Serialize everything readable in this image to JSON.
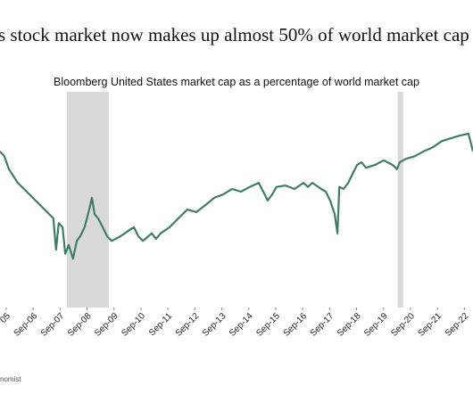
{
  "chart_data": {
    "type": "line",
    "title": "s stock market now makes up almost 50% of world market cap",
    "subtitle": "Bloomberg United States market cap as a percentage of world market cap",
    "source": "nomist",
    "x": [
      2005.44,
      2005.6,
      2005.77,
      2006.1,
      2006.43,
      2006.76,
      2007.09,
      2007.42,
      2007.52,
      2007.62,
      2007.76,
      2007.86,
      2007.99,
      2008.15,
      2008.29,
      2008.42,
      2008.58,
      2008.75,
      2008.85,
      2008.95,
      2009.08,
      2009.25,
      2009.41,
      2009.58,
      2009.74,
      2009.91,
      2010.07,
      2010.24,
      2010.41,
      2010.57,
      2010.74,
      2011.07,
      2011.23,
      2011.4,
      2011.73,
      2012.06,
      2012.39,
      2012.72,
      2013.05,
      2013.39,
      2013.72,
      2014.05,
      2014.38,
      2014.71,
      2015.04,
      2015.21,
      2015.37,
      2015.54,
      2015.7,
      2016.03,
      2016.37,
      2016.7,
      2016.86,
      2017.03,
      2017.36,
      2017.53,
      2017.69,
      2017.86,
      2017.96,
      2018.03,
      2018.19,
      2018.36,
      2018.52,
      2018.69,
      2018.85,
      2019.02,
      2019.35,
      2019.68,
      2020.01,
      2020.17,
      2020.27,
      2020.5,
      2020.83,
      2021.16,
      2021.5,
      2021.83,
      2022.16,
      2022.49,
      2022.82,
      2022.99
    ],
    "series": [
      {
        "color": "#3f7d64",
        "values": [
          47.2,
          46.5,
          44.6,
          42.6,
          41.3,
          40.0,
          38.7,
          37.4,
          32.8,
          36.7,
          36.1,
          32.2,
          33.5,
          31.5,
          34.1,
          34.8,
          36.1,
          38.7,
          40.4,
          38.0,
          37.4,
          36.1,
          34.8,
          34.1,
          34.4,
          34.8,
          35.2,
          35.7,
          36.1,
          34.8,
          34.1,
          35.2,
          34.4,
          35.2,
          36.1,
          37.4,
          38.7,
          38.3,
          39.3,
          40.4,
          40.9,
          41.7,
          41.3,
          42.0,
          42.6,
          41.3,
          40.0,
          40.9,
          42.0,
          42.2,
          41.7,
          42.6,
          42.0,
          42.6,
          41.7,
          41.3,
          40.0,
          38.0,
          35.2,
          42.0,
          41.7,
          42.6,
          43.9,
          45.2,
          45.6,
          44.8,
          45.2,
          45.9,
          45.2,
          44.6,
          45.6,
          46.1,
          46.5,
          47.2,
          47.8,
          48.7,
          49.1,
          49.5,
          49.8,
          47.2
        ]
      }
    ],
    "shaded_periods": [
      [
        2007.92,
        2009.48
      ],
      [
        2020.2,
        2020.4
      ]
    ],
    "xlim": [
      2005.44,
      2022.99
    ],
    "ylim": [
      25,
      55
    ],
    "xticks": [
      {
        "value": 2005.67,
        "label": "05"
      },
      {
        "value": 2006.67,
        "label": "Sep-06"
      },
      {
        "value": 2007.67,
        "label": "Sep-07"
      },
      {
        "value": 2008.67,
        "label": "Sep-08"
      },
      {
        "value": 2009.67,
        "label": "Sep-09"
      },
      {
        "value": 2010.67,
        "label": "Sep-10"
      },
      {
        "value": 2011.67,
        "label": "Sep-11"
      },
      {
        "value": 2012.67,
        "label": "Sep-12"
      },
      {
        "value": 2013.67,
        "label": "Sep-13"
      },
      {
        "value": 2014.67,
        "label": "Sep-14"
      },
      {
        "value": 2015.67,
        "label": "Sep-15"
      },
      {
        "value": 2016.67,
        "label": "Sep-16"
      },
      {
        "value": 2017.67,
        "label": "Sep-17"
      },
      {
        "value": 2018.67,
        "label": "Sep-18"
      },
      {
        "value": 2019.67,
        "label": "Sep-19"
      },
      {
        "value": 2020.67,
        "label": "Sep-20"
      },
      {
        "value": 2021.67,
        "label": "Sep-21"
      },
      {
        "value": 2022.67,
        "label": "Sep-22"
      }
    ],
    "shade_color": "#d9d9d9"
  }
}
